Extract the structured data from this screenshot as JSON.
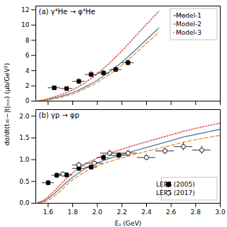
{
  "chart_data": [
    {
      "type": "line",
      "title": "(a) γ⁴He → φ⁴He",
      "ylabel": "dσ/dt(t=−|t|ₘᵢₙ) (μb/GeV²)",
      "xlim": [
        1.5,
        3.0
      ],
      "xticks": [
        1.6,
        1.8,
        {
          "value": 2.0,
          "label": "2.0"
        },
        2.2,
        2.4,
        2.6,
        2.8,
        {
          "value": 3.0,
          "label": "3.0"
        }
      ],
      "ylim": [
        0,
        12.5
      ],
      "yticks": [
        0,
        2,
        4,
        6,
        8,
        10,
        12
      ],
      "tick_labels": "y",
      "grid": false,
      "legend": "upper right",
      "series": [
        {
          "name": "Model-1",
          "type": "line",
          "line_style": "solid",
          "x": [
            1.52,
            1.56,
            1.6,
            1.65,
            1.7,
            1.75,
            1.8,
            1.85,
            1.9,
            1.95,
            2.0,
            2.1,
            2.2,
            2.3,
            2.4,
            2.5
          ],
          "values": [
            0.03,
            0.1,
            0.22,
            0.4,
            0.6,
            0.85,
            1.12,
            1.45,
            1.85,
            2.28,
            2.75,
            3.85,
            5.1,
            6.55,
            8.1,
            9.6
          ]
        },
        {
          "name": "Model-2",
          "type": "line",
          "line_style": "dashed",
          "x": [
            1.52,
            1.56,
            1.6,
            1.65,
            1.7,
            1.75,
            1.8,
            1.85,
            1.9,
            1.95,
            2.0,
            2.1,
            2.2,
            2.3,
            2.4,
            2.5
          ],
          "values": [
            0.01,
            0.05,
            0.14,
            0.28,
            0.46,
            0.68,
            0.92,
            1.25,
            1.62,
            2.02,
            2.48,
            3.5,
            4.7,
            6.1,
            7.6,
            9.0
          ]
        },
        {
          "name": "Model-3",
          "type": "line",
          "line_style": "dotted",
          "x": [
            1.52,
            1.56,
            1.6,
            1.65,
            1.7,
            1.75,
            1.8,
            1.85,
            1.9,
            1.95,
            2.0,
            2.1,
            2.2,
            2.3,
            2.4,
            2.5
          ],
          "values": [
            0.05,
            0.16,
            0.32,
            0.55,
            0.82,
            1.12,
            1.48,
            1.92,
            2.42,
            2.98,
            3.58,
            5.0,
            6.6,
            8.35,
            10.1,
            11.8
          ]
        },
        {
          "type": "scatter",
          "marker": "square",
          "x": [
            1.65,
            1.75,
            1.85,
            1.95,
            2.05,
            2.15,
            2.25
          ],
          "values": [
            1.75,
            1.65,
            2.6,
            3.5,
            3.7,
            4.15,
            5.05
          ],
          "xerr": [
            0.05,
            0.05,
            0.05,
            0.05,
            0.05,
            0.05,
            0.05
          ],
          "yerr": [
            0.25,
            0.2,
            0.35,
            0.4,
            0.35,
            0.35,
            0.4
          ]
        }
      ]
    },
    {
      "type": "line",
      "title": "(b) γp → φp",
      "xlabel": "Eᵧ (GeV)",
      "xlim": [
        1.5,
        3.0
      ],
      "xticks": [
        1.6,
        1.8,
        {
          "value": 2.0,
          "label": "2.0"
        },
        2.2,
        2.4,
        2.6,
        2.8,
        {
          "value": 3.0,
          "label": "3.0"
        }
      ],
      "ylim": [
        0,
        2.15
      ],
      "yticks": [
        {
          "value": 0,
          "label": "0.0"
        },
        0.5,
        {
          "value": 1.0,
          "label": "1.0"
        },
        1.5,
        {
          "value": 2.0,
          "label": "2.0"
        }
      ],
      "grid": false,
      "legend": "lower right",
      "series": [
        {
          "type": "line",
          "line_style": "solid",
          "x": [
            1.52,
            1.56,
            1.6,
            1.65,
            1.7,
            1.75,
            1.8,
            1.85,
            1.9,
            1.95,
            2.0,
            2.1,
            2.2,
            2.3,
            2.4,
            2.5,
            2.6,
            2.7,
            2.8,
            2.9,
            3.0
          ],
          "values": [
            0.01,
            0.04,
            0.11,
            0.22,
            0.35,
            0.48,
            0.6,
            0.7,
            0.79,
            0.86,
            0.93,
            1.03,
            1.12,
            1.2,
            1.28,
            1.36,
            1.44,
            1.52,
            1.58,
            1.64,
            1.7
          ]
        },
        {
          "type": "line",
          "line_style": "dashed",
          "x": [
            1.52,
            1.56,
            1.6,
            1.65,
            1.7,
            1.75,
            1.8,
            1.85,
            1.9,
            1.95,
            2.0,
            2.1,
            2.2,
            2.3,
            2.4,
            2.5,
            2.6,
            2.7,
            2.8,
            2.9,
            3.0
          ],
          "values": [
            0.005,
            0.02,
            0.07,
            0.16,
            0.28,
            0.42,
            0.54,
            0.64,
            0.72,
            0.79,
            0.86,
            0.96,
            1.04,
            1.12,
            1.19,
            1.26,
            1.33,
            1.4,
            1.46,
            1.51,
            1.56
          ]
        },
        {
          "type": "line",
          "line_style": "dotted",
          "x": [
            1.52,
            1.56,
            1.6,
            1.65,
            1.7,
            1.75,
            1.8,
            1.85,
            1.9,
            1.95,
            2.0,
            2.1,
            2.2,
            2.3,
            2.4,
            2.5,
            2.6,
            2.7,
            2.8,
            2.9,
            3.0
          ],
          "values": [
            0.02,
            0.06,
            0.15,
            0.28,
            0.43,
            0.57,
            0.7,
            0.8,
            0.89,
            0.97,
            1.04,
            1.15,
            1.24,
            1.33,
            1.41,
            1.49,
            1.57,
            1.65,
            1.72,
            1.78,
            1.84
          ]
        },
        {
          "name": "LEPS (2005)",
          "type": "scatter",
          "marker": "square",
          "x": [
            1.6,
            1.67,
            1.75,
            1.85,
            1.95,
            2.05,
            2.175
          ],
          "values": [
            0.47,
            0.64,
            0.65,
            0.8,
            0.83,
            1.05,
            1.1
          ],
          "xerr": [
            0.05,
            0.04,
            0.05,
            0.05,
            0.05,
            0.05,
            0.075
          ],
          "yerr": [
            0.06,
            0.06,
            0.05,
            0.06,
            0.05,
            0.07,
            0.07
          ]
        },
        {
          "name": "LEPS (2017)",
          "type": "scatter",
          "marker": "open_circle",
          "x": [
            1.72,
            1.85,
            1.975,
            2.1,
            2.25,
            2.4,
            2.55,
            2.7,
            2.85
          ],
          "values": [
            0.67,
            0.88,
            0.92,
            1.15,
            1.15,
            1.05,
            1.2,
            1.3,
            1.22
          ],
          "xerr": [
            0.05,
            0.05,
            0.075,
            0.075,
            0.075,
            0.075,
            0.075,
            0.075,
            0.075
          ],
          "yerr": [
            0.05,
            0.06,
            0.06,
            0.07,
            0.07,
            0.07,
            0.08,
            0.09,
            0.09
          ]
        }
      ]
    }
  ]
}
